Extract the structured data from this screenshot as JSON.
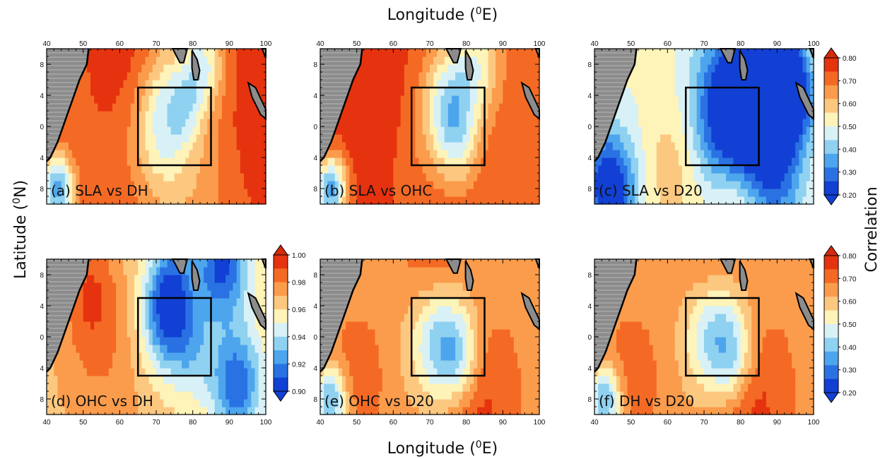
{
  "figure": {
    "top_xlabel": "Longitude (",
    "bottom_xlabel": "Longitude (",
    "xlabel_sup": "0",
    "xlabel_unit": "E)",
    "ylabel": "Latitude (",
    "ylabel_sup": "0",
    "ylabel_unit": "N)",
    "colorbar_title": "Correlation"
  },
  "chart_data": {
    "type": "heatmap",
    "x_ticks": [
      "40",
      "50",
      "60",
      "70",
      "80",
      "90",
      "100"
    ],
    "y_ticks": [
      "8",
      "4",
      "0",
      "4",
      "8"
    ],
    "xlim": [
      40,
      100
    ],
    "box_region": {
      "lon": [
        65,
        85
      ],
      "lat": [
        -5,
        5
      ]
    },
    "panels": [
      {
        "label": "(a) SLA vs DH",
        "scale": "A",
        "field": {
          "base": 0.73,
          "blobs": [
            {
              "lon": 73,
              "lat": 3,
              "r": 6,
              "a": -0.2
            },
            {
              "lon": 78,
              "lat": 2.5,
              "r": 3,
              "a": -0.1
            },
            {
              "lon": 70,
              "lat": -3,
              "r": 5,
              "a": -0.07
            },
            {
              "lon": 80,
              "lat": -7,
              "r": 9,
              "a": -0.1
            },
            {
              "lon": 62,
              "lat": 8.5,
              "r": 6,
              "a": 0.05
            },
            {
              "lon": 83,
              "lat": 8,
              "r": 4,
              "a": -0.22
            },
            {
              "lon": 43,
              "lat": -8,
              "r": 3,
              "a": -0.4
            },
            {
              "lon": 95,
              "lat": 0,
              "r": 10,
              "a": 0.05
            }
          ]
        }
      },
      {
        "label": "(b) SLA vs OHC",
        "scale": "A",
        "field": {
          "base": 0.74,
          "blobs": [
            {
              "lon": 75,
              "lat": 3,
              "r": 5,
              "a": -0.27
            },
            {
              "lon": 78,
              "lat": -2.5,
              "r": 4,
              "a": -0.15
            },
            {
              "lon": 66,
              "lat": -4,
              "r": 6,
              "a": -0.05
            },
            {
              "lon": 83,
              "lat": 8,
              "r": 5,
              "a": -0.2
            },
            {
              "lon": 55,
              "lat": 0,
              "r": 8,
              "a": 0.05
            },
            {
              "lon": 43,
              "lat": -8,
              "r": 3,
              "a": -0.4
            }
          ]
        }
      },
      {
        "label": "(c) SLA vs D20",
        "scale": "A",
        "field": {
          "base": 0.55,
          "blobs": [
            {
              "lon": 78,
              "lat": 1,
              "r": 8,
              "a": -0.45
            },
            {
              "lon": 88,
              "lat": -5,
              "r": 7,
              "a": -0.3
            },
            {
              "lon": 88,
              "lat": 9,
              "r": 6,
              "a": -0.35
            },
            {
              "lon": 95,
              "lat": 4,
              "r": 4,
              "a": -0.25
            },
            {
              "lon": 44,
              "lat": -8,
              "r": 5,
              "a": -0.35
            },
            {
              "lon": 80,
              "lat": -8,
              "r": 6,
              "a": 0.23
            },
            {
              "lon": 50,
              "lat": 0,
              "r": 12,
              "a": -0.05
            },
            {
              "lon": 62,
              "lat": -4,
              "r": 6,
              "a": 0.1
            }
          ]
        }
      },
      {
        "label": "(d) OHC vs DH",
        "scale": "B",
        "field": {
          "base": 0.962,
          "blobs": [
            {
              "lon": 73,
              "lat": 3,
              "r": 5,
              "a": -0.06
            },
            {
              "lon": 88,
              "lat": 9,
              "r": 5,
              "a": -0.055
            },
            {
              "lon": 92,
              "lat": -6,
              "r": 5,
              "a": -0.05
            },
            {
              "lon": 80,
              "lat": -2,
              "r": 4,
              "a": -0.02
            },
            {
              "lon": 55,
              "lat": -3,
              "r": 10,
              "a": 0.017
            },
            {
              "lon": 52,
              "lat": 6,
              "r": 5,
              "a": 0.02
            },
            {
              "lon": 75,
              "lat": 9,
              "r": 4,
              "a": -0.02
            }
          ]
        }
      },
      {
        "label": "(e) OHC vs D20",
        "scale": "A",
        "field": {
          "base": 0.66,
          "blobs": [
            {
              "lon": 73,
              "lat": 0,
              "r": 6,
              "a": -0.3
            },
            {
              "lon": 78,
              "lat": -3,
              "r": 4,
              "a": -0.15
            },
            {
              "lon": 72,
              "lat": 8,
              "r": 6,
              "a": 0.12
            },
            {
              "lon": 82,
              "lat": -8,
              "r": 7,
              "a": 0.12
            },
            {
              "lon": 43,
              "lat": -8,
              "r": 3,
              "a": -0.3
            },
            {
              "lon": 50,
              "lat": -5,
              "r": 5,
              "a": 0.06
            }
          ]
        }
      },
      {
        "label": "(f) DH vs D20",
        "scale": "A",
        "field": {
          "base": 0.66,
          "blobs": [
            {
              "lon": 73,
              "lat": 1,
              "r": 6,
              "a": -0.3
            },
            {
              "lon": 78,
              "lat": -3,
              "r": 4,
              "a": -0.15
            },
            {
              "lon": 72,
              "lat": 8,
              "r": 6,
              "a": 0.12
            },
            {
              "lon": 82,
              "lat": -8,
              "r": 7,
              "a": 0.12
            },
            {
              "lon": 43,
              "lat": -8,
              "r": 3,
              "a": -0.3
            },
            {
              "lon": 50,
              "lat": -5,
              "r": 5,
              "a": 0.06
            }
          ]
        }
      }
    ],
    "colorbars": [
      {
        "id": "A",
        "min": 0.2,
        "max": 0.8,
        "labels": [
          "0.80",
          "0.70",
          "0.60",
          "0.50",
          "0.40",
          "0.30",
          "0.20"
        ],
        "colors": [
          "#e6330f",
          "#f46a24",
          "#fb9c4c",
          "#fcc880",
          "#fef3b8",
          "#d8f1f7",
          "#8fd1f0",
          "#4da5ee",
          "#2a72e3",
          "#1240d4"
        ],
        "under": "#1240d4",
        "over": "#d42a0c"
      },
      {
        "id": "B",
        "min": 0.9,
        "max": 1.0,
        "labels": [
          "1.00",
          "0.98",
          "0.96",
          "0.94",
          "0.92",
          "0.90"
        ],
        "colors": [
          "#e6330f",
          "#f46a24",
          "#fb9c4c",
          "#fcc880",
          "#fef3b8",
          "#d8f1f7",
          "#8fd1f0",
          "#4da5ee",
          "#2a72e3",
          "#1240d4"
        ],
        "under": "#1240d4",
        "over": "#d42a0c"
      }
    ],
    "land_color": "#8c8c8c"
  }
}
